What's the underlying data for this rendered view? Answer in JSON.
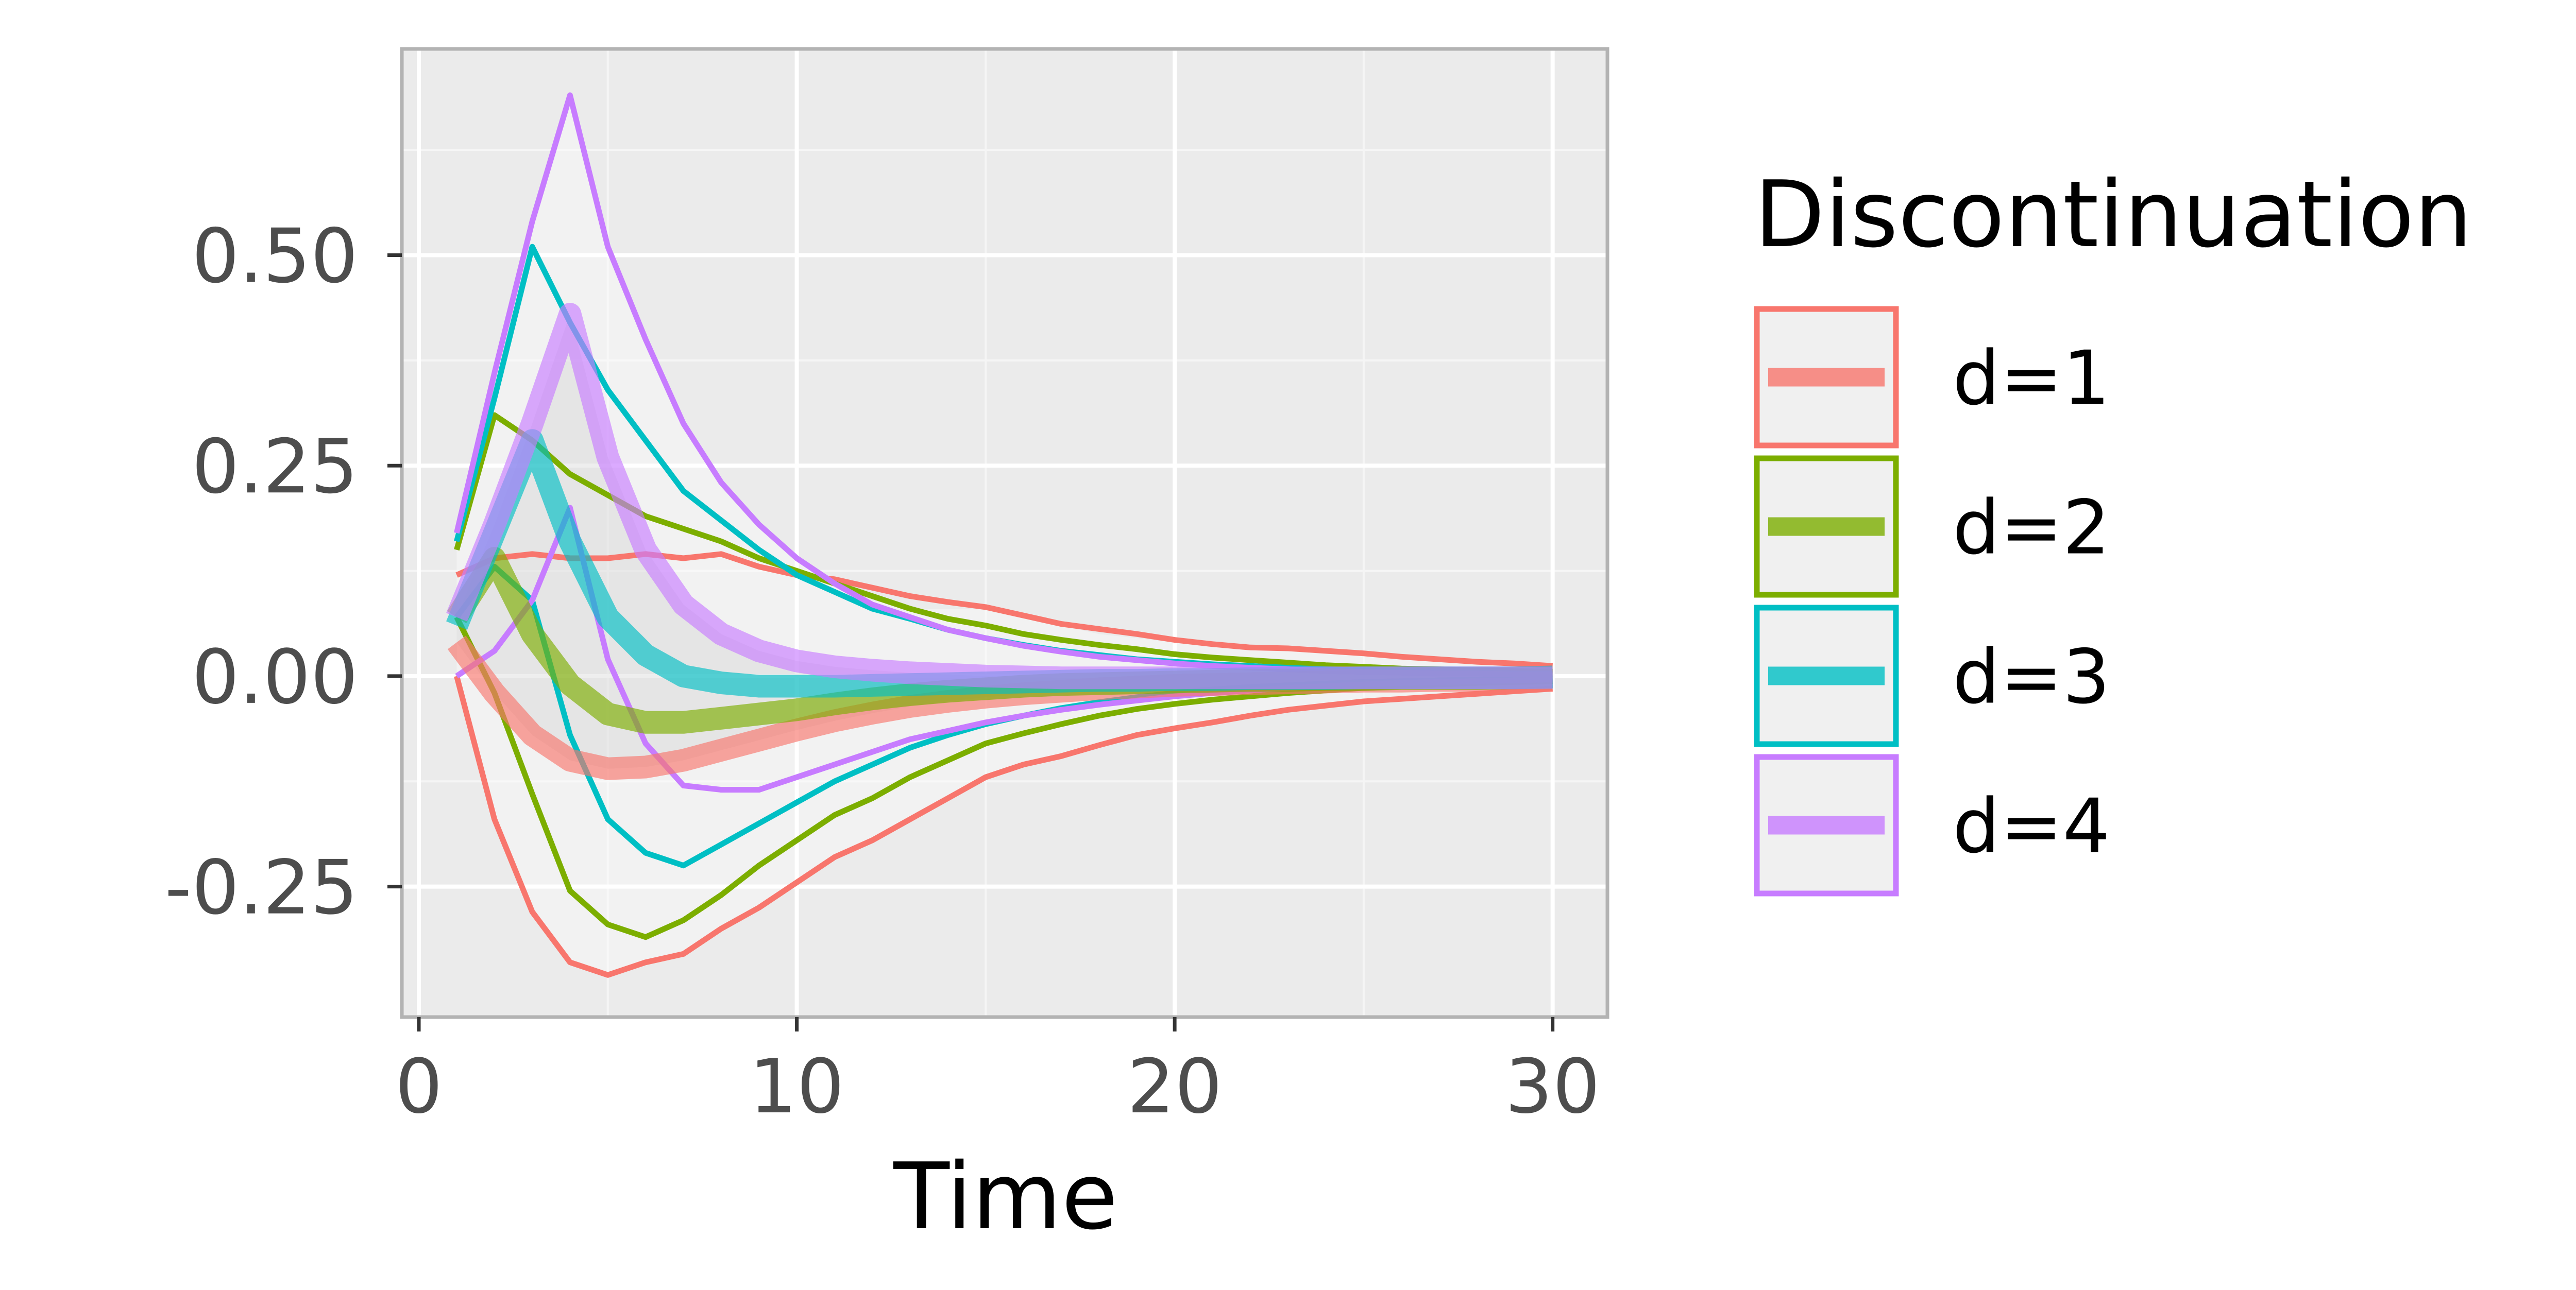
{
  "chart_data": {
    "type": "line",
    "title": "",
    "xlabel": "Time",
    "ylabel": "",
    "xlim": [
      -0.45,
      31.45
    ],
    "ylim": [
      -0.405,
      0.745
    ],
    "x_ticks": [
      0,
      10,
      20,
      30
    ],
    "x_tick_labels": [
      "0",
      "10",
      "20",
      "30"
    ],
    "y_ticks": [
      -0.25,
      0,
      0.25,
      0.5
    ],
    "y_tick_labels": [
      "-0.25",
      "0.00",
      "0.25",
      "0.50"
    ],
    "x_minor_ticks": [
      5,
      15,
      25
    ],
    "y_minor_ticks": [
      -0.125,
      0.125,
      0.375,
      0.625
    ],
    "grid": true,
    "panel_background": "#ebebeb",
    "legend": {
      "title": "Discontinuation",
      "position": "right",
      "entries": [
        "d=1",
        "d=2",
        "d=3",
        "d=4"
      ]
    },
    "band": {
      "x": [
        1,
        2,
        3,
        4,
        5,
        6,
        7,
        8,
        9,
        10,
        11,
        12,
        13,
        14,
        15,
        16,
        17,
        18,
        19,
        20,
        21,
        22,
        23,
        24,
        25,
        26,
        27,
        28,
        29,
        30
      ],
      "upper": [
        0.18,
        0.36,
        0.53,
        0.69,
        0.51,
        0.4,
        0.3,
        0.23,
        0.18,
        0.14,
        0.11,
        0.09,
        0.08,
        0.08,
        0.08,
        0.07,
        0.06,
        0.05,
        0.045,
        0.04,
        0.035,
        0.032,
        0.03,
        0.027,
        0.025,
        0.022,
        0.02,
        0.017,
        0.015,
        0.012
      ],
      "lower": [
        0.0,
        -0.17,
        -0.28,
        -0.34,
        -0.355,
        -0.34,
        -0.33,
        -0.3,
        -0.275,
        -0.245,
        -0.215,
        -0.195,
        -0.17,
        -0.145,
        -0.12,
        -0.105,
        -0.095,
        -0.082,
        -0.07,
        -0.062,
        -0.055,
        -0.047,
        -0.04,
        -0.035,
        -0.03,
        -0.027,
        -0.024,
        -0.021,
        -0.018,
        -0.015
      ]
    },
    "series": [
      {
        "name": "d=1",
        "color": "#f8766d",
        "x": [
          1,
          2,
          3,
          4,
          5,
          6,
          7,
          8,
          9,
          10,
          11,
          12,
          13,
          14,
          15,
          16,
          17,
          18,
          19,
          20,
          21,
          22,
          23,
          24,
          25,
          26,
          27,
          28,
          29,
          30
        ],
        "estimate": [
          0.04,
          -0.02,
          -0.07,
          -0.1,
          -0.11,
          -0.108,
          -0.1,
          -0.088,
          -0.076,
          -0.064,
          -0.053,
          -0.044,
          -0.036,
          -0.03,
          -0.025,
          -0.021,
          -0.018,
          -0.015,
          -0.013,
          -0.011,
          -0.01,
          -0.009,
          -0.008,
          -0.007,
          -0.006,
          -0.006,
          -0.005,
          -0.005,
          -0.004,
          -0.004
        ],
        "upper": [
          0.12,
          0.14,
          0.145,
          0.14,
          0.14,
          0.145,
          0.14,
          0.145,
          0.13,
          0.12,
          0.115,
          0.105,
          0.095,
          0.088,
          0.082,
          0.072,
          0.062,
          0.056,
          0.05,
          0.043,
          0.038,
          0.034,
          0.033,
          0.03,
          0.027,
          0.023,
          0.02,
          0.017,
          0.015,
          0.012
        ],
        "lower": [
          0.0,
          -0.17,
          -0.28,
          -0.34,
          -0.355,
          -0.34,
          -0.33,
          -0.3,
          -0.275,
          -0.245,
          -0.215,
          -0.195,
          -0.17,
          -0.145,
          -0.12,
          -0.105,
          -0.095,
          -0.082,
          -0.07,
          -0.062,
          -0.055,
          -0.047,
          -0.04,
          -0.035,
          -0.03,
          -0.027,
          -0.024,
          -0.021,
          -0.018,
          -0.015
        ]
      },
      {
        "name": "d=2",
        "color": "#7cae00",
        "x": [
          1,
          2,
          3,
          4,
          5,
          6,
          7,
          8,
          9,
          10,
          11,
          12,
          13,
          14,
          15,
          16,
          17,
          18,
          19,
          20,
          21,
          22,
          23,
          24,
          25,
          26,
          27,
          28,
          29,
          30
        ],
        "estimate": [
          0.07,
          0.14,
          0.05,
          -0.01,
          -0.045,
          -0.055,
          -0.055,
          -0.05,
          -0.045,
          -0.04,
          -0.033,
          -0.027,
          -0.022,
          -0.018,
          -0.015,
          -0.012,
          -0.01,
          -0.009,
          -0.008,
          -0.007,
          -0.006,
          -0.005,
          -0.005,
          -0.004,
          -0.004,
          -0.003,
          -0.003,
          -0.003,
          -0.002,
          -0.002
        ],
        "upper": [
          0.15,
          0.31,
          0.28,
          0.24,
          0.215,
          0.19,
          0.175,
          0.16,
          0.14,
          0.125,
          0.11,
          0.095,
          0.08,
          0.068,
          0.06,
          0.05,
          0.043,
          0.037,
          0.032,
          0.026,
          0.022,
          0.019,
          0.016,
          0.013,
          0.011,
          0.009,
          0.008,
          0.007,
          0.006,
          0.005
        ],
        "lower": [
          0.07,
          -0.02,
          -0.14,
          -0.255,
          -0.295,
          -0.31,
          -0.29,
          -0.26,
          -0.225,
          -0.195,
          -0.165,
          -0.145,
          -0.12,
          -0.1,
          -0.08,
          -0.068,
          -0.057,
          -0.047,
          -0.039,
          -0.033,
          -0.028,
          -0.024,
          -0.02,
          -0.017,
          -0.014,
          -0.012,
          -0.01,
          -0.008,
          -0.007,
          -0.006
        ]
      },
      {
        "name": "d=3",
        "color": "#00bfc4",
        "x": [
          1,
          2,
          3,
          4,
          5,
          6,
          7,
          8,
          9,
          10,
          11,
          12,
          13,
          14,
          15,
          16,
          17,
          18,
          19,
          20,
          21,
          22,
          23,
          24,
          25,
          26,
          27,
          28,
          29,
          30
        ],
        "estimate": [
          0.06,
          0.17,
          0.28,
          0.16,
          0.07,
          0.025,
          0.0,
          -0.008,
          -0.012,
          -0.012,
          -0.012,
          -0.011,
          -0.01,
          -0.009,
          -0.008,
          -0.007,
          -0.006,
          -0.005,
          -0.005,
          -0.004,
          -0.004,
          -0.003,
          -0.003,
          -0.003,
          -0.002,
          -0.002,
          -0.002,
          -0.002,
          -0.002,
          -0.001
        ],
        "upper": [
          0.16,
          0.33,
          0.51,
          0.42,
          0.34,
          0.28,
          0.22,
          0.185,
          0.15,
          0.12,
          0.1,
          0.08,
          0.068,
          0.055,
          0.045,
          0.037,
          0.03,
          0.025,
          0.02,
          0.017,
          0.014,
          0.012,
          0.01,
          0.008,
          0.007,
          0.006,
          0.005,
          0.004,
          0.003,
          0.003
        ],
        "lower": [
          0.07,
          0.13,
          0.09,
          -0.07,
          -0.17,
          -0.21,
          -0.225,
          -0.2,
          -0.175,
          -0.15,
          -0.125,
          -0.105,
          -0.085,
          -0.07,
          -0.057,
          -0.047,
          -0.038,
          -0.031,
          -0.025,
          -0.02,
          -0.016,
          -0.013,
          -0.011,
          -0.009,
          -0.007,
          -0.006,
          -0.005,
          -0.004,
          -0.003,
          -0.003
        ]
      },
      {
        "name": "d=4",
        "color": "#c77cff",
        "x": [
          1,
          2,
          3,
          4,
          5,
          6,
          7,
          8,
          9,
          10,
          11,
          12,
          13,
          14,
          15,
          16,
          17,
          18,
          19,
          20,
          21,
          22,
          23,
          24,
          25,
          26,
          27,
          28,
          29,
          30
        ],
        "estimate": [
          0.07,
          0.18,
          0.3,
          0.43,
          0.26,
          0.15,
          0.085,
          0.05,
          0.03,
          0.018,
          0.011,
          0.007,
          0.004,
          0.002,
          0.0,
          -0.001,
          -0.002,
          -0.002,
          -0.002,
          -0.002,
          -0.002,
          -0.002,
          -0.002,
          -0.002,
          -0.002,
          -0.002,
          -0.002,
          -0.002,
          -0.002,
          -0.002
        ],
        "upper": [
          0.17,
          0.36,
          0.54,
          0.69,
          0.51,
          0.4,
          0.3,
          0.23,
          0.18,
          0.14,
          0.11,
          0.085,
          0.07,
          0.055,
          0.045,
          0.036,
          0.029,
          0.023,
          0.019,
          0.015,
          0.012,
          0.01,
          0.008,
          0.006,
          0.005,
          0.004,
          0.003,
          0.003,
          0.002,
          0.002
        ],
        "lower": [
          0.0,
          0.03,
          0.09,
          0.2,
          0.02,
          -0.08,
          -0.13,
          -0.135,
          -0.135,
          -0.12,
          -0.105,
          -0.09,
          -0.075,
          -0.065,
          -0.055,
          -0.047,
          -0.04,
          -0.034,
          -0.029,
          -0.024,
          -0.02,
          -0.017,
          -0.014,
          -0.012,
          -0.01,
          -0.008,
          -0.007,
          -0.006,
          -0.005,
          -0.004
        ]
      }
    ]
  }
}
